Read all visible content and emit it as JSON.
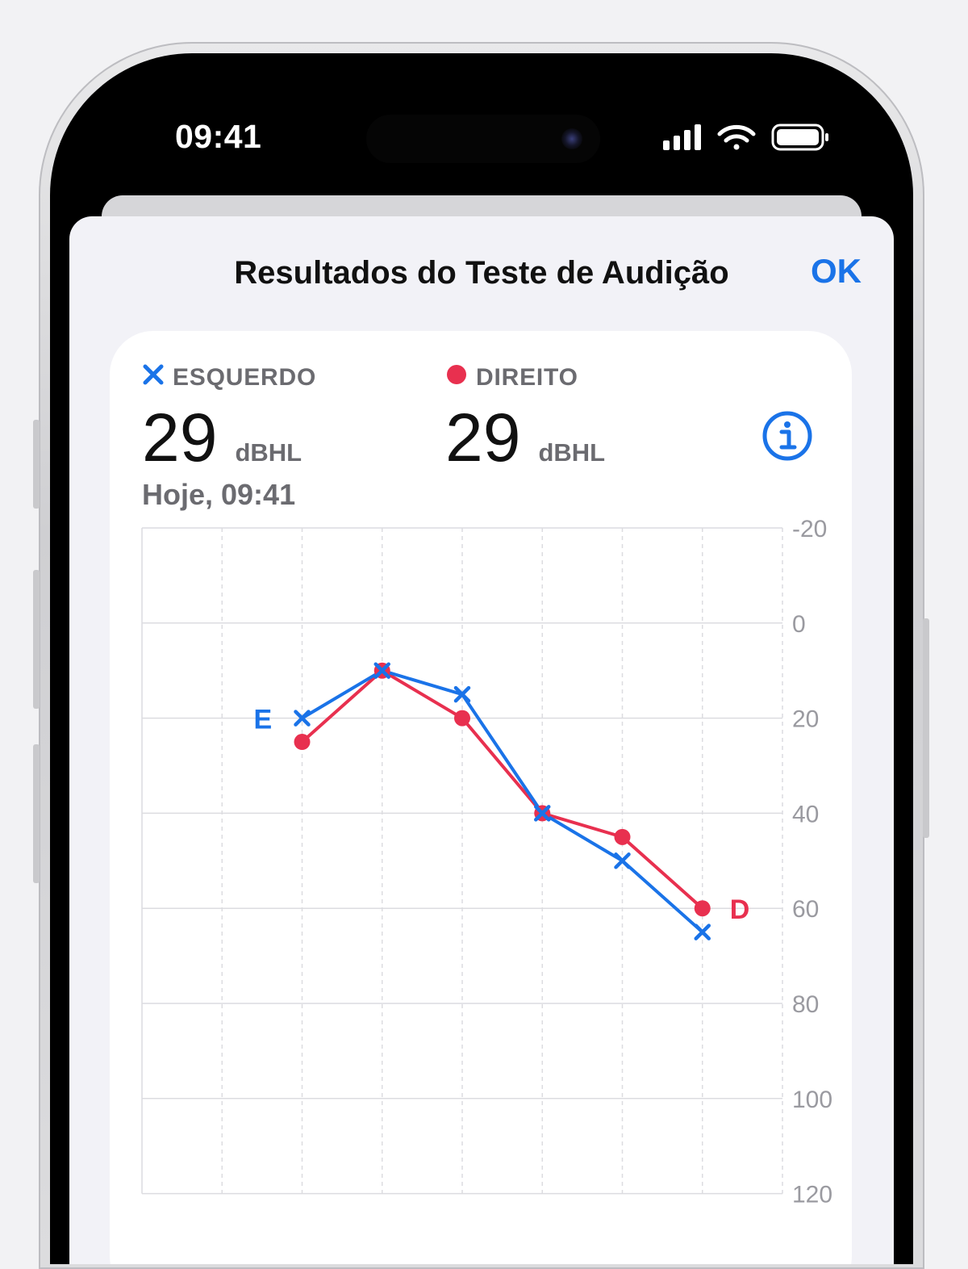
{
  "status_bar": {
    "time": "09:41",
    "icons": [
      "cellular-signal-icon",
      "wifi-icon",
      "battery-icon"
    ]
  },
  "sheet": {
    "title": "Resultados do Teste de Audição",
    "done_label": "OK"
  },
  "summary": {
    "left": {
      "label": "ESQUERDO",
      "value": "29",
      "unit": "dBHL",
      "marker": "x",
      "color": "#1a73e8"
    },
    "right": {
      "label": "DIREITO",
      "value": "29",
      "unit": "dBHL",
      "marker": "circle",
      "color": "#e8304f"
    },
    "date": "Hoje, 09:41",
    "info_icon": "info-circle-icon"
  },
  "chart_data": {
    "type": "line",
    "ylim": [
      -20,
      120
    ],
    "y_inverted": true,
    "y_ticks": [
      "-20",
      "0",
      "20",
      "40",
      "60",
      "80",
      "100",
      "120"
    ],
    "y_tick_values": [
      -20,
      0,
      20,
      40,
      60,
      80,
      100,
      120
    ],
    "x": [
      2,
      3,
      4,
      5,
      6,
      7
    ],
    "series": [
      {
        "name": "E",
        "ear": "left",
        "marker": "x",
        "color": "#1a73e8",
        "values": [
          20,
          10,
          15,
          40,
          50,
          65
        ]
      },
      {
        "name": "D",
        "ear": "right",
        "marker": "circle",
        "color": "#e8304f",
        "values": [
          25,
          10,
          20,
          40,
          45,
          60
        ]
      }
    ],
    "grid": true
  }
}
